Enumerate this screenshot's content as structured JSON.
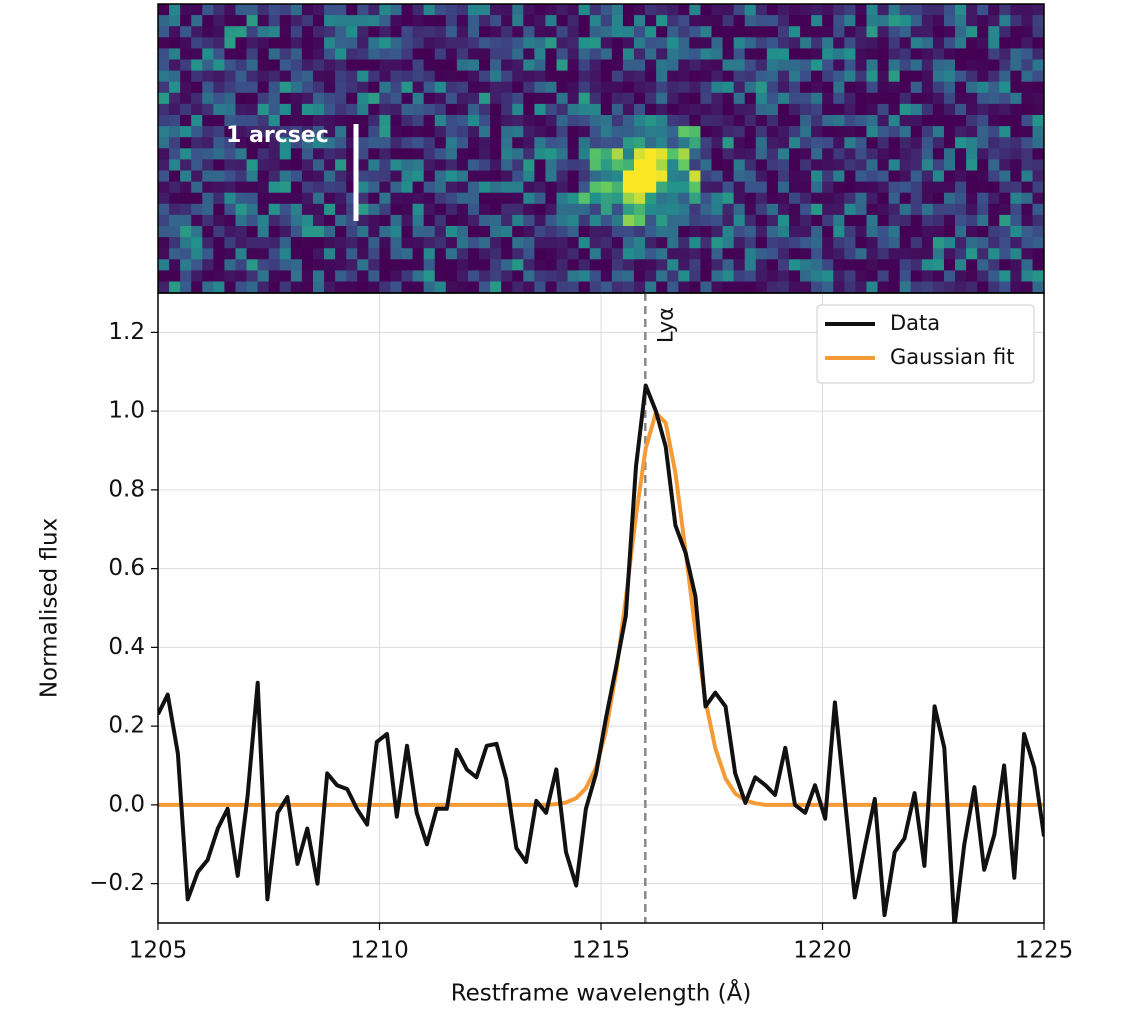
{
  "chart_data": {
    "type": "line",
    "image_label": "1 arcsec",
    "xlabel": "Restframe wavelength (Å)",
    "ylabel": "Normalised flux",
    "x": [
      1205.0,
      1205.22,
      1205.45,
      1205.67,
      1205.9,
      1206.12,
      1206.35,
      1206.57,
      1206.8,
      1207.02,
      1207.25,
      1207.47,
      1207.7,
      1207.92,
      1208.15,
      1208.37,
      1208.6,
      1208.82,
      1209.04,
      1209.27,
      1209.49,
      1209.72,
      1209.94,
      1210.17,
      1210.39,
      1210.62,
      1210.84,
      1211.07,
      1211.29,
      1211.52,
      1211.74,
      1211.97,
      1212.19,
      1212.42,
      1212.64,
      1212.86,
      1213.09,
      1213.31,
      1213.54,
      1213.76,
      1213.99,
      1214.21,
      1214.44,
      1214.66,
      1214.89,
      1215.11,
      1215.34,
      1215.56,
      1215.79,
      1216.01,
      1216.24,
      1216.46,
      1216.68,
      1216.91,
      1217.13,
      1217.36,
      1217.58,
      1217.81,
      1218.03,
      1218.26,
      1218.48,
      1218.71,
      1218.93,
      1219.16,
      1219.38,
      1219.61,
      1219.83,
      1220.06,
      1220.28,
      1220.5,
      1220.73,
      1220.95,
      1221.18,
      1221.4,
      1221.63,
      1221.85,
      1222.08,
      1222.3,
      1222.53,
      1222.75,
      1222.98,
      1223.2,
      1223.43,
      1223.65,
      1223.88,
      1224.1,
      1224.33,
      1224.55,
      1224.78,
      1225.0
    ],
    "series": [
      {
        "name": "Data",
        "color": "#111111",
        "values": [
          0.23,
          0.28,
          0.13,
          -0.24,
          -0.17,
          -0.14,
          -0.06,
          -0.01,
          -0.18,
          0.02,
          0.31,
          -0.24,
          -0.02,
          0.02,
          -0.15,
          -0.06,
          -0.2,
          0.08,
          0.05,
          0.04,
          -0.01,
          -0.05,
          0.16,
          0.18,
          -0.03,
          0.15,
          -0.02,
          -0.1,
          -0.01,
          -0.01,
          0.14,
          0.09,
          0.07,
          0.15,
          0.155,
          0.065,
          -0.11,
          -0.145,
          0.01,
          -0.02,
          0.09,
          -0.12,
          -0.205,
          -0.01,
          0.08,
          0.22,
          0.35,
          0.48,
          0.86,
          1.065,
          1.0,
          0.91,
          0.71,
          0.64,
          0.53,
          0.25,
          0.285,
          0.25,
          0.08,
          0.005,
          0.07,
          0.05,
          0.025,
          0.145,
          0.0,
          -0.02,
          0.05,
          -0.035,
          0.26,
          0.02,
          -0.235,
          -0.11,
          0.015,
          -0.28,
          -0.12,
          -0.085,
          0.03,
          -0.155,
          0.25,
          0.145,
          -0.31,
          -0.1,
          0.045,
          -0.165,
          -0.075,
          0.1,
          -0.185,
          0.18,
          0.095,
          -0.08
        ]
      },
      {
        "name": "Gaussian fit",
        "color": "#f59b35",
        "values": [
          0,
          0,
          0,
          0,
          0,
          0,
          0,
          0,
          0,
          0,
          0,
          0,
          0,
          0,
          0,
          0,
          0,
          0,
          0,
          0,
          0,
          0,
          0,
          0,
          0,
          0,
          0,
          0,
          0,
          0,
          0,
          0,
          0,
          0,
          0,
          0,
          0,
          0,
          0,
          0,
          0.002,
          0.006,
          0.017,
          0.042,
          0.095,
          0.187,
          0.336,
          0.523,
          0.735,
          0.905,
          0.996,
          0.97,
          0.843,
          0.644,
          0.443,
          0.264,
          0.144,
          0.067,
          0.029,
          0.011,
          0.004,
          0,
          0,
          0,
          0,
          0,
          0,
          0,
          0,
          0,
          0,
          0,
          0,
          0,
          0,
          0,
          0,
          0,
          0,
          0,
          0,
          0,
          0,
          0,
          0,
          0,
          0,
          0,
          0,
          0
        ]
      }
    ],
    "annotation": {
      "text": "Lyα",
      "x": 1216
    },
    "xlim": [
      1205,
      1225
    ],
    "xticks": [
      1205,
      1210,
      1215,
      1220,
      1225
    ],
    "ylim": [
      -0.3,
      1.3
    ],
    "yticks": [
      {
        "value": -0.2,
        "label": "−0.2"
      },
      {
        "value": 0,
        "label": "0.0"
      },
      0.2,
      0.4,
      0.6,
      0.8,
      {
        "value": 1,
        "label": "1.0"
      },
      1.2
    ],
    "grid": true,
    "legend": "upper right"
  }
}
